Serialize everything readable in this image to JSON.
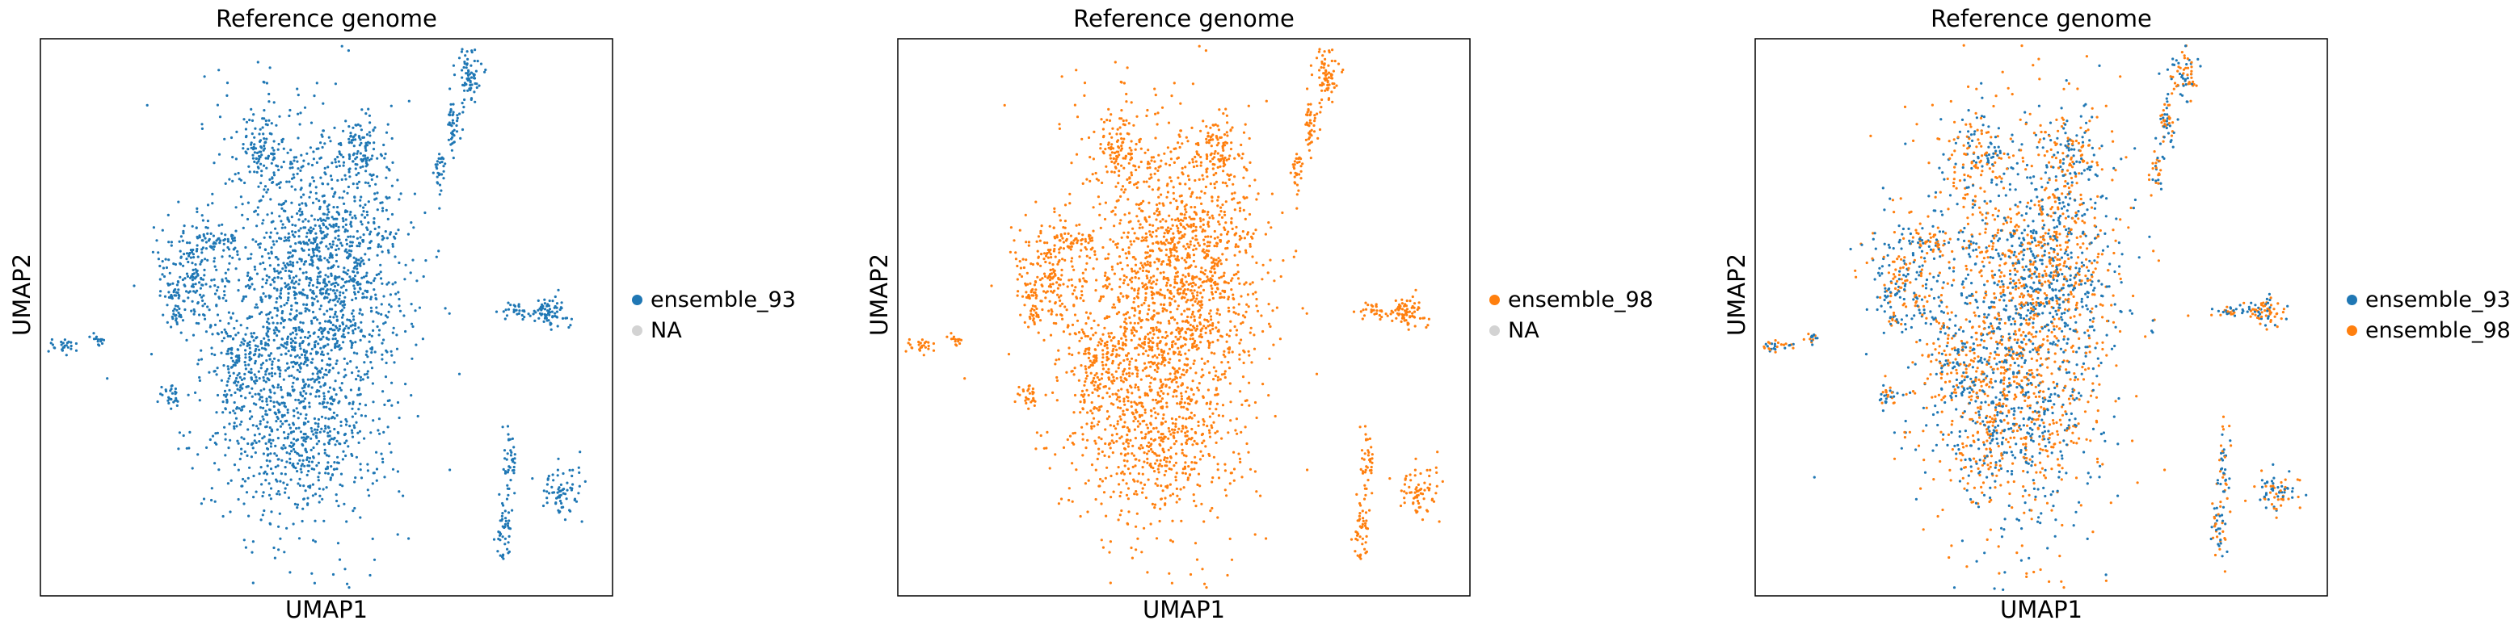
{
  "chart_data": [
    {
      "type": "scatter",
      "title": "Reference genome",
      "xlabel": "UMAP1",
      "ylabel": "UMAP2",
      "legend_position": "right",
      "series": [
        {
          "name": "ensemble_93",
          "color": "#1f77b4"
        },
        {
          "name": "NA",
          "color": "#d3d3d3"
        }
      ],
      "plotted_series": [
        "ensemble_93"
      ]
    },
    {
      "type": "scatter",
      "title": "Reference genome",
      "xlabel": "UMAP1",
      "ylabel": "UMAP2",
      "legend_position": "right",
      "series": [
        {
          "name": "ensemble_98",
          "color": "#ff7f0e"
        },
        {
          "name": "NA",
          "color": "#d3d3d3"
        }
      ],
      "plotted_series": [
        "ensemble_98"
      ]
    },
    {
      "type": "scatter",
      "title": "Reference genome",
      "xlabel": "UMAP1",
      "ylabel": "UMAP2",
      "legend_position": "right",
      "series": [
        {
          "name": "ensemble_93",
          "color": "#1f77b4"
        },
        {
          "name": "ensemble_98",
          "color": "#ff7f0e"
        }
      ],
      "plotted_series": [
        "ensemble_93",
        "ensemble_98"
      ]
    }
  ]
}
